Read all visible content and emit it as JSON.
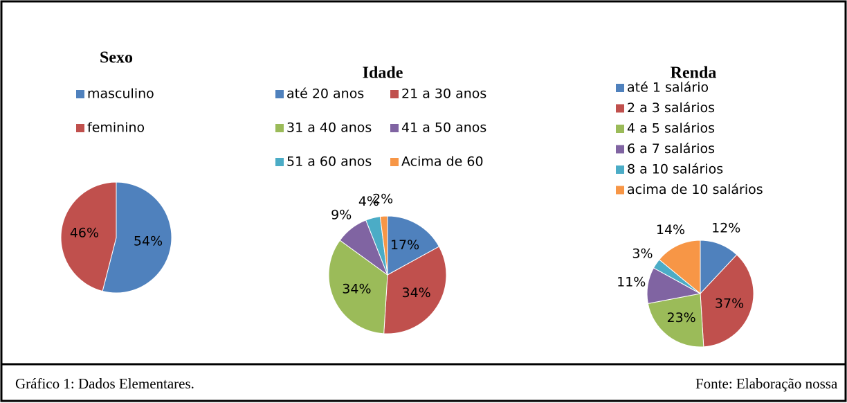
{
  "chart_data": [
    {
      "type": "pie",
      "title": "Sexo",
      "categories": [
        "masculino",
        "feminino"
      ],
      "values": [
        54,
        46
      ],
      "value_labels": [
        "54%",
        "46%"
      ],
      "colors": [
        "#4f81bd",
        "#c0504d"
      ]
    },
    {
      "type": "pie",
      "title": "Idade",
      "categories": [
        "até 20 anos",
        "21 a 30 anos",
        "31 a 40 anos",
        "41 a 50 anos",
        "51 a 60 anos",
        "Acima de 60"
      ],
      "values": [
        17,
        34,
        34,
        9,
        4,
        2
      ],
      "value_labels": [
        "17%",
        "34%",
        "34%",
        "9%",
        "4%",
        "2%"
      ],
      "colors": [
        "#4f81bd",
        "#c0504d",
        "#9bbb59",
        "#8064a2",
        "#4bacc6",
        "#f79646"
      ]
    },
    {
      "type": "pie",
      "title": "Renda",
      "categories": [
        "até 1 salário",
        "2 a 3 salários",
        "4 a 5 salários",
        "6 a 7 salários",
        "8 a 10 salários",
        "acima de 10 salários"
      ],
      "values": [
        12,
        37,
        23,
        11,
        3,
        14
      ],
      "value_labels": [
        "12%",
        "37%",
        "23%",
        "11%",
        "3%",
        "14%"
      ],
      "colors": [
        "#4f81bd",
        "#c0504d",
        "#9bbb59",
        "#8064a2",
        "#4bacc6",
        "#f79646"
      ]
    }
  ],
  "caption": {
    "left": "Gráfico 1: Dados Elementares.",
    "right": "Fonte: Elaboração nossa"
  }
}
